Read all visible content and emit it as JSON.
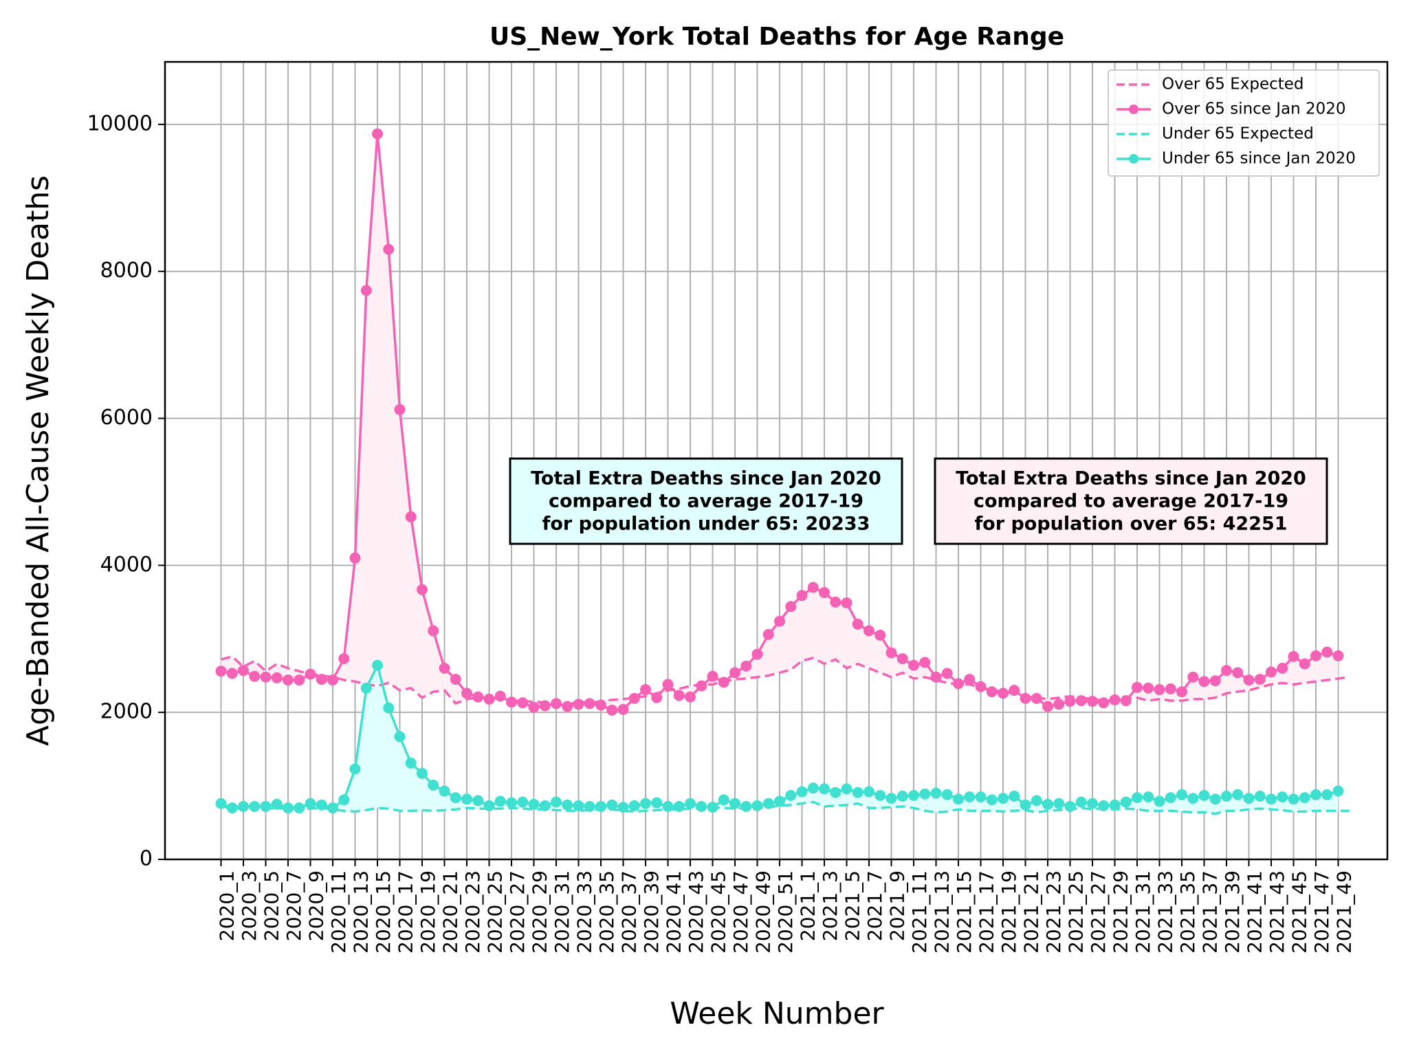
{
  "chart_data": {
    "type": "line",
    "title": "US_New_York Total Deaths for Age Range",
    "xlabel": "Week Number",
    "ylabel": "Age-Banded All-Cause Weekly Deaths",
    "ylim": [
      0,
      10850
    ],
    "yticks": [
      0,
      2000,
      4000,
      6000,
      8000,
      10000
    ],
    "grid": true,
    "legend_position": "top-right",
    "x": [
      "2020_1",
      "2020_2",
      "2020_3",
      "2020_4",
      "2020_5",
      "2020_6",
      "2020_7",
      "2020_8",
      "2020_9",
      "2020_10",
      "2020_11",
      "2020_12",
      "2020_13",
      "2020_14",
      "2020_15",
      "2020_16",
      "2020_17",
      "2020_18",
      "2020_19",
      "2020_20",
      "2020_21",
      "2020_22",
      "2020_23",
      "2020_24",
      "2020_25",
      "2020_26",
      "2020_27",
      "2020_28",
      "2020_29",
      "2020_30",
      "2020_31",
      "2020_32",
      "2020_33",
      "2020_34",
      "2020_35",
      "2020_36",
      "2020_37",
      "2020_38",
      "2020_39",
      "2020_40",
      "2020_41",
      "2020_42",
      "2020_43",
      "2020_44",
      "2020_45",
      "2020_46",
      "2020_47",
      "2020_48",
      "2020_49",
      "2020_50",
      "2020_51",
      "2020_52",
      "2021_1",
      "2021_2",
      "2021_3",
      "2021_4",
      "2021_5",
      "2021_6",
      "2021_7",
      "2021_8",
      "2021_9",
      "2021_10",
      "2021_11",
      "2021_12",
      "2021_13",
      "2021_14",
      "2021_15",
      "2021_16",
      "2021_17",
      "2021_18",
      "2021_19",
      "2021_20",
      "2021_21",
      "2021_22",
      "2021_23",
      "2021_24",
      "2021_25",
      "2021_26",
      "2021_27",
      "2021_28",
      "2021_29",
      "2021_30",
      "2021_31",
      "2021_32",
      "2021_33",
      "2021_34",
      "2021_35",
      "2021_36",
      "2021_37",
      "2021_38",
      "2021_39",
      "2021_40",
      "2021_41",
      "2021_42",
      "2021_43",
      "2021_44",
      "2021_45",
      "2021_46",
      "2021_47",
      "2021_48",
      "2021_49",
      "2021_50"
    ],
    "tick_labels": [
      "2020_1",
      "2020_3",
      "2020_5",
      "2020_7",
      "2020_9",
      "2020_11",
      "2020_13",
      "2020_15",
      "2020_17",
      "2020_19",
      "2020_21",
      "2020_23",
      "2020_25",
      "2020_27",
      "2020_29",
      "2020_31",
      "2020_33",
      "2020_35",
      "2020_37",
      "2020_39",
      "2020_41",
      "2020_43",
      "2020_45",
      "2020_47",
      "2020_49",
      "2020_51",
      "2021_1",
      "2021_3",
      "2021_5",
      "2021_7",
      "2021_9",
      "2021_11",
      "2021_13",
      "2021_15",
      "2021_17",
      "2021_19",
      "2021_21",
      "2021_23",
      "2021_25",
      "2021_27",
      "2021_29",
      "2021_31",
      "2021_33",
      "2021_35",
      "2021_37",
      "2021_39",
      "2021_41",
      "2021_43",
      "2021_45",
      "2021_47",
      "2021_49"
    ],
    "series": [
      {
        "name": "Over 65 Expected",
        "style": "dashed",
        "color": "#f562b5",
        "values": [
          2720,
          2760,
          2620,
          2700,
          2560,
          2660,
          2600,
          2560,
          2520,
          2500,
          2480,
          2440,
          2420,
          2380,
          2360,
          2400,
          2300,
          2330,
          2200,
          2280,
          2300,
          2120,
          2180,
          2200,
          2200,
          2180,
          2150,
          2160,
          2140,
          2140,
          2120,
          2100,
          2150,
          2130,
          2150,
          2170,
          2180,
          2200,
          2220,
          2260,
          2300,
          2320,
          2360,
          2380,
          2380,
          2420,
          2450,
          2460,
          2480,
          2500,
          2540,
          2580,
          2700,
          2740,
          2660,
          2720,
          2600,
          2660,
          2600,
          2540,
          2480,
          2540,
          2460,
          2480,
          2440,
          2400,
          2380,
          2380,
          2340,
          2300,
          2280,
          2260,
          2220,
          2200,
          2180,
          2200,
          2220,
          2200,
          2180,
          2160,
          2160,
          2180,
          2200,
          2160,
          2180,
          2160,
          2160,
          2180,
          2180,
          2200,
          2260,
          2280,
          2300,
          2340,
          2380,
          2400,
          2380,
          2400,
          2420,
          2440,
          2460,
          2480
        ]
      },
      {
        "name": "Over 65 since Jan 2020",
        "style": "solid-marker",
        "color": "#f562b5",
        "values": [
          2560,
          2530,
          2570,
          2490,
          2480,
          2470,
          2440,
          2440,
          2520,
          2450,
          2440,
          2730,
          4100,
          7740,
          9870,
          8300,
          6120,
          4660,
          3670,
          3110,
          2600,
          2450,
          2260,
          2210,
          2180,
          2220,
          2140,
          2130,
          2070,
          2090,
          2120,
          2080,
          2110,
          2120,
          2100,
          2030,
          2040,
          2190,
          2310,
          2200,
          2380,
          2230,
          2210,
          2360,
          2490,
          2410,
          2540,
          2630,
          2790,
          3060,
          3240,
          3440,
          3590,
          3700,
          3630,
          3500,
          3490,
          3200,
          3110,
          3050,
          2810,
          2730,
          2640,
          2680,
          2480,
          2530,
          2390,
          2450,
          2350,
          2280,
          2260,
          2300,
          2190,
          2190,
          2080,
          2110,
          2150,
          2160,
          2150,
          2130,
          2170,
          2160,
          2340,
          2330,
          2310,
          2320,
          2280,
          2480,
          2420,
          2430,
          2570,
          2540,
          2440,
          2450,
          2550,
          2600,
          2760,
          2660,
          2770,
          2820,
          2770,
          null
        ]
      },
      {
        "name": "Under 65 Expected",
        "style": "dashed",
        "color": "#40e0d0",
        "values": [
          720,
          700,
          690,
          700,
          700,
          690,
          700,
          680,
          690,
          700,
          680,
          660,
          650,
          670,
          700,
          690,
          660,
          660,
          670,
          660,
          670,
          680,
          700,
          690,
          690,
          690,
          700,
          690,
          680,
          680,
          670,
          660,
          660,
          670,
          680,
          680,
          660,
          650,
          660,
          670,
          680,
          680,
          690,
          700,
          710,
          700,
          690,
          700,
          700,
          710,
          730,
          740,
          760,
          780,
          720,
          730,
          740,
          760,
          700,
          700,
          710,
          720,
          700,
          660,
          640,
          650,
          680,
          660,
          660,
          660,
          650,
          660,
          670,
          640,
          660,
          670,
          680,
          700,
          680,
          690,
          680,
          690,
          680,
          660,
          660,
          660,
          650,
          640,
          640,
          620,
          660,
          660,
          680,
          690,
          680,
          670,
          650,
          650,
          660,
          660,
          660,
          660
        ]
      },
      {
        "name": "Under 65 since Jan 2020",
        "style": "solid-marker",
        "color": "#40e0d0",
        "values": [
          760,
          700,
          720,
          720,
          720,
          750,
          700,
          700,
          760,
          740,
          700,
          810,
          1230,
          2330,
          2640,
          2060,
          1670,
          1310,
          1170,
          1010,
          930,
          840,
          820,
          800,
          730,
          790,
          770,
          780,
          750,
          730,
          780,
          740,
          730,
          720,
          720,
          740,
          710,
          730,
          760,
          770,
          720,
          720,
          760,
          720,
          710,
          810,
          760,
          720,
          730,
          760,
          790,
          870,
          920,
          970,
          960,
          910,
          960,
          910,
          920,
          870,
          830,
          860,
          870,
          890,
          900,
          880,
          820,
          850,
          850,
          810,
          830,
          860,
          740,
          800,
          750,
          760,
          720,
          780,
          760,
          730,
          740,
          780,
          840,
          850,
          790,
          840,
          880,
          830,
          870,
          820,
          860,
          880,
          830,
          860,
          820,
          850,
          820,
          840,
          880,
          880,
          930,
          null
        ]
      }
    ],
    "annotations": [
      {
        "lines": [
          "Total Extra Deaths since Jan 2020",
          "compared to average 2017-19",
          "for population under 65: 20233"
        ],
        "background": "#e0ffff"
      },
      {
        "lines": [
          "Total Extra Deaths since Jan 2020",
          "compared to average 2017-19",
          "for population over 65: 42251"
        ],
        "background": "#fff0f5"
      }
    ]
  }
}
